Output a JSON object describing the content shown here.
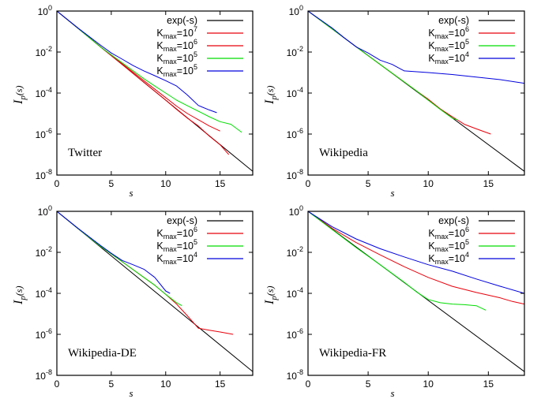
{
  "chart_data": [
    {
      "type": "line",
      "label": "Twitter",
      "xlabel": "s",
      "ylabel": "I_p(s)",
      "xlim": [
        0,
        18
      ],
      "ylim": [
        1e-08,
        1
      ],
      "yscale": "log",
      "xticks": [
        0,
        5,
        10,
        15
      ],
      "yticks": [
        {
          "base": "10",
          "exp": "0",
          "v": 1
        },
        {
          "base": "10",
          "exp": "-2",
          "v": 0.01
        },
        {
          "base": "10",
          "exp": "-4",
          "v": 0.0001
        },
        {
          "base": "10",
          "exp": "-6",
          "v": 1e-06
        },
        {
          "base": "10",
          "exp": "-8",
          "v": 1e-08
        }
      ],
      "legend_position": "top-right",
      "series": [
        {
          "name": "exp(-s)",
          "name_main": "exp(-s)",
          "name_sub": "",
          "name_eq": "",
          "name_sup": "",
          "color": "#000000",
          "x": [
            0,
            18
          ],
          "y": [
            1,
            1.52e-08
          ]
        },
        {
          "name": "Kmax=10^7",
          "name_main": "K",
          "name_sub": "max",
          "name_eq": "=10",
          "name_sup": "7",
          "color": "#e8000b",
          "x": [
            0,
            2,
            4,
            6,
            8,
            10,
            11,
            12,
            13,
            14,
            15,
            15.8
          ],
          "y": [
            1,
            0.135,
            0.018,
            0.0025,
            0.00033,
            4.5e-05,
            1.6e-05,
            6e-06,
            2.5e-06,
            8e-07,
            3e-07,
            1e-07
          ]
        },
        {
          "name": "Kmax=10^6",
          "name_main": "K",
          "name_sub": "max",
          "name_eq": "=10",
          "name_sup": "6",
          "color": "#e8000b",
          "x": [
            0,
            2,
            4,
            6,
            8,
            10,
            11,
            12,
            13,
            14,
            15
          ],
          "y": [
            1,
            0.135,
            0.018,
            0.0027,
            0.0004,
            6e-05,
            2.3e-05,
            1e-05,
            5e-06,
            2.5e-06,
            1.4e-06
          ]
        },
        {
          "name": "Kmax=10^5",
          "name_main": "K",
          "name_sub": "max",
          "name_eq": "=10",
          "name_sup": "5",
          "color": "#00dd00",
          "x": [
            0,
            2,
            4,
            6,
            8,
            9,
            10,
            11,
            12,
            13,
            14,
            15,
            16,
            17
          ],
          "y": [
            1,
            0.135,
            0.018,
            0.003,
            0.0005,
            0.00022,
            0.0001,
            4.5e-05,
            2.4e-05,
            1.3e-05,
            7e-06,
            4e-06,
            3e-06,
            1.2e-06
          ]
        },
        {
          "name": "Kmax=10^5",
          "name_main": "K",
          "name_sub": "max",
          "name_eq": "=10",
          "name_sup": "5",
          "color": "#0000dd",
          "x": [
            0,
            2,
            4,
            5,
            6,
            7,
            8,
            9,
            10,
            11,
            12,
            13,
            14,
            14.7
          ],
          "y": [
            1,
            0.14,
            0.022,
            0.009,
            0.0045,
            0.0022,
            0.0012,
            0.0007,
            0.0004,
            0.00022,
            8e-05,
            2.5e-05,
            1.5e-05,
            1.1e-05
          ]
        }
      ]
    },
    {
      "type": "line",
      "label": "Wikipedia",
      "xlabel": "s",
      "ylabel": "I_p(s)",
      "xlim": [
        0,
        18
      ],
      "ylim": [
        1e-08,
        1
      ],
      "yscale": "log",
      "xticks": [
        0,
        5,
        10,
        15
      ],
      "yticks": [
        {
          "base": "10",
          "exp": "0",
          "v": 1
        },
        {
          "base": "10",
          "exp": "-2",
          "v": 0.01
        },
        {
          "base": "10",
          "exp": "-4",
          "v": 0.0001
        },
        {
          "base": "10",
          "exp": "-6",
          "v": 1e-06
        },
        {
          "base": "10",
          "exp": "-8",
          "v": 1e-08
        }
      ],
      "legend_position": "top-right",
      "series": [
        {
          "name": "exp(-s)",
          "name_main": "exp(-s)",
          "name_sub": "",
          "name_eq": "",
          "name_sup": "",
          "color": "#000000",
          "x": [
            0,
            18
          ],
          "y": [
            1,
            1.52e-08
          ]
        },
        {
          "name": "Kmax=10^6",
          "name_main": "K",
          "name_sub": "max",
          "name_eq": "=10",
          "name_sup": "6",
          "color": "#e8000b",
          "x": [
            0,
            2,
            4,
            6,
            8,
            9,
            10,
            11,
            12,
            13,
            14,
            15.2
          ],
          "y": [
            1,
            0.135,
            0.018,
            0.0025,
            0.00035,
            0.00013,
            5e-05,
            1.7e-05,
            7e-06,
            3e-06,
            1.8e-06,
            1e-06
          ]
        },
        {
          "name": "Kmax=10^5",
          "name_main": "K",
          "name_sub": "max",
          "name_eq": "=10",
          "name_sup": "5",
          "color": "#00dd00",
          "x": [
            0,
            2,
            4,
            6,
            8,
            9,
            10,
            11,
            12,
            12.4
          ],
          "y": [
            1,
            0.135,
            0.018,
            0.0025,
            0.00035,
            0.00013,
            4.5e-05,
            1.6e-05,
            6e-06,
            5e-06
          ]
        },
        {
          "name": "Kmax=10^4",
          "name_main": "K",
          "name_sub": "max",
          "name_eq": "=10",
          "name_sup": "4",
          "color": "#0000dd",
          "x": [
            0,
            2,
            3,
            4,
            5,
            6,
            7,
            8,
            10,
            12,
            14,
            16,
            18
          ],
          "y": [
            1,
            0.15,
            0.05,
            0.018,
            0.009,
            0.004,
            0.0025,
            0.0012,
            0.001,
            0.0008,
            0.0006,
            0.00045,
            0.0003
          ]
        }
      ]
    },
    {
      "type": "line",
      "label": "Wikipedia-DE",
      "xlabel": "s",
      "ylabel": "I_p(s)",
      "xlim": [
        0,
        18
      ],
      "ylim": [
        1e-08,
        1
      ],
      "yscale": "log",
      "xticks": [
        0,
        5,
        10,
        15
      ],
      "yticks": [
        {
          "base": "10",
          "exp": "0",
          "v": 1
        },
        {
          "base": "10",
          "exp": "-2",
          "v": 0.01
        },
        {
          "base": "10",
          "exp": "-4",
          "v": 0.0001
        },
        {
          "base": "10",
          "exp": "-6",
          "v": 1e-06
        },
        {
          "base": "10",
          "exp": "-8",
          "v": 1e-08
        }
      ],
      "legend_position": "top-right",
      "series": [
        {
          "name": "exp(-s)",
          "name_main": "exp(-s)",
          "name_sub": "",
          "name_eq": "",
          "name_sup": "",
          "color": "#000000",
          "x": [
            0,
            18
          ],
          "y": [
            1,
            1.52e-08
          ]
        },
        {
          "name": "Kmax=10^6",
          "name_main": "K",
          "name_sub": "max",
          "name_eq": "=10",
          "name_sup": "6",
          "color": "#e8000b",
          "x": [
            0,
            2,
            4,
            6,
            8,
            9,
            10,
            11,
            12,
            13,
            14,
            15,
            16.2
          ],
          "y": [
            1,
            0.135,
            0.02,
            0.0035,
            0.0006,
            0.00025,
            9e-05,
            3e-05,
            8e-06,
            2e-06,
            1.6e-06,
            1.3e-06,
            1e-06
          ]
        },
        {
          "name": "Kmax=10^5",
          "name_main": "K",
          "name_sub": "max",
          "name_eq": "=10",
          "name_sup": "5",
          "color": "#00dd00",
          "x": [
            0,
            2,
            4,
            6,
            8,
            9,
            10,
            11,
            11.5
          ],
          "y": [
            1,
            0.135,
            0.02,
            0.0035,
            0.0006,
            0.00025,
            9e-05,
            3.5e-05,
            2.5e-05
          ]
        },
        {
          "name": "Kmax=10^4",
          "name_main": "K",
          "name_sub": "max",
          "name_eq": "=10",
          "name_sup": "4",
          "color": "#0000dd",
          "x": [
            0,
            2,
            4,
            5,
            6,
            7,
            8,
            9,
            10,
            10.4
          ],
          "y": [
            1,
            0.14,
            0.022,
            0.009,
            0.004,
            0.0025,
            0.0015,
            0.0006,
            0.00013,
            0.0001
          ]
        }
      ]
    },
    {
      "type": "line",
      "label": "Wikipedia-FR",
      "xlabel": "s",
      "ylabel": "I_p(s)",
      "xlim": [
        0,
        18
      ],
      "ylim": [
        1e-08,
        1
      ],
      "yscale": "log",
      "xticks": [
        0,
        5,
        10,
        15
      ],
      "yticks": [
        {
          "base": "10",
          "exp": "0",
          "v": 1
        },
        {
          "base": "10",
          "exp": "-2",
          "v": 0.01
        },
        {
          "base": "10",
          "exp": "-4",
          "v": 0.0001
        },
        {
          "base": "10",
          "exp": "-6",
          "v": 1e-06
        },
        {
          "base": "10",
          "exp": "-8",
          "v": 1e-08
        }
      ],
      "legend_position": "top-right",
      "series": [
        {
          "name": "exp(-s)",
          "name_main": "exp(-s)",
          "name_sub": "",
          "name_eq": "",
          "name_sup": "",
          "color": "#000000",
          "x": [
            0,
            18
          ],
          "y": [
            1,
            1.52e-08
          ]
        },
        {
          "name": "Kmax=10^6",
          "name_main": "K",
          "name_sub": "max",
          "name_eq": "=10",
          "name_sup": "6",
          "color": "#e8000b",
          "x": [
            0,
            2,
            4,
            6,
            8,
            10,
            12,
            14,
            16,
            17,
            18
          ],
          "y": [
            1,
            0.15,
            0.03,
            0.0075,
            0.002,
            0.0006,
            0.00022,
            0.00011,
            6e-05,
            4e-05,
            3e-05
          ]
        },
        {
          "name": "Kmax=10^5",
          "name_main": "K",
          "name_sub": "max",
          "name_eq": "=10",
          "name_sup": "5",
          "color": "#00dd00",
          "x": [
            0,
            2,
            4,
            6,
            8,
            9,
            10,
            11,
            12,
            13,
            14,
            14.8
          ],
          "y": [
            1,
            0.13,
            0.017,
            0.0025,
            0.00035,
            0.00012,
            5e-05,
            3.5e-05,
            3e-05,
            2.8e-05,
            2.5e-05,
            1.5e-05
          ]
        },
        {
          "name": "Kmax=10^4",
          "name_main": "K",
          "name_sub": "max",
          "name_eq": "=10",
          "name_sup": "4",
          "color": "#0000dd",
          "x": [
            0,
            2,
            4,
            6,
            8,
            10,
            12,
            14,
            16,
            18
          ],
          "y": [
            1,
            0.18,
            0.045,
            0.015,
            0.006,
            0.0025,
            0.0012,
            0.0005,
            0.00022,
            0.0001
          ]
        }
      ]
    }
  ]
}
